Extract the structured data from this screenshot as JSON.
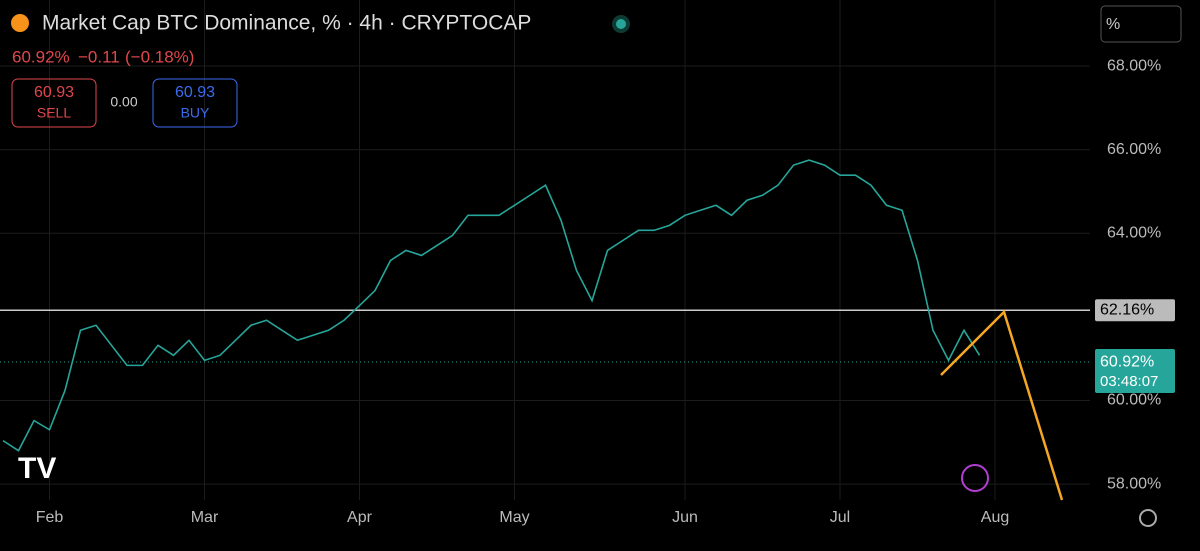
{
  "header": {
    "title": "Market Cap BTC Dominance, % · 4h · CRYPTOCAP",
    "last": "60.92%",
    "change": "−0.11",
    "change_pct": "(−0.18%)",
    "sell_price": "60.93",
    "sell": "SELL",
    "spread": "0.00",
    "buy_price": "60.93",
    "buy": "BUY",
    "scale_button": "%"
  },
  "chart_data": {
    "type": "line",
    "categories": [
      null,
      null,
      null,
      "Feb",
      null,
      null,
      null,
      null,
      null,
      null,
      null,
      null,
      null,
      "Mar",
      null,
      null,
      null,
      null,
      null,
      null,
      null,
      null,
      null,
      "Apr",
      null,
      null,
      null,
      null,
      null,
      null,
      null,
      null,
      null,
      "May",
      null,
      null,
      null,
      null,
      null,
      null,
      null,
      null,
      null,
      null,
      "Jun",
      null,
      null,
      null,
      null,
      null,
      null,
      null,
      null,
      null,
      "Jul",
      null,
      null,
      null,
      null,
      null,
      null,
      null,
      null,
      null,
      "Aug",
      null,
      null,
      null,
      null,
      null
    ],
    "series": [
      {
        "name": "BTC Dominance",
        "color": "#26a69a",
        "values": [
          59.04,
          58.8,
          59.52,
          59.3,
          60.24,
          61.68,
          61.8,
          61.32,
          60.84,
          60.84,
          61.32,
          61.08,
          61.44,
          60.96,
          61.08,
          61.44,
          61.8,
          61.92,
          61.68,
          61.44,
          61.56,
          61.68,
          61.92,
          62.27,
          62.63,
          63.35,
          63.59,
          63.47,
          63.71,
          63.95,
          64.43,
          64.43,
          64.43,
          64.67,
          64.91,
          65.15,
          64.31,
          63.11,
          62.39,
          63.59,
          63.83,
          64.07,
          64.07,
          64.19,
          64.43,
          64.55,
          64.67,
          64.43,
          64.79,
          64.91,
          65.15,
          65.63,
          65.75,
          65.63,
          65.39,
          65.39,
          65.15,
          64.67,
          64.55,
          63.35,
          61.68,
          60.96,
          61.68,
          61.08,
          null,
          null,
          null,
          null,
          null,
          null
        ]
      }
    ],
    "ylim": [
      57.62,
      69.58
    ],
    "yticks": [
      {
        "value": 58,
        "label": "58.00%"
      },
      {
        "value": 60,
        "label": "60.00%"
      },
      {
        "value": 64,
        "label": "64.00%"
      },
      {
        "value": 66,
        "label": "66.00%"
      },
      {
        "value": 68,
        "label": "68.00%"
      }
    ],
    "grid": true,
    "reference_line": {
      "value": 62.16,
      "label": "62.16%"
    },
    "last_price": {
      "value": 60.92,
      "label": "60.92%",
      "countdown": "03:48:07"
    }
  }
}
